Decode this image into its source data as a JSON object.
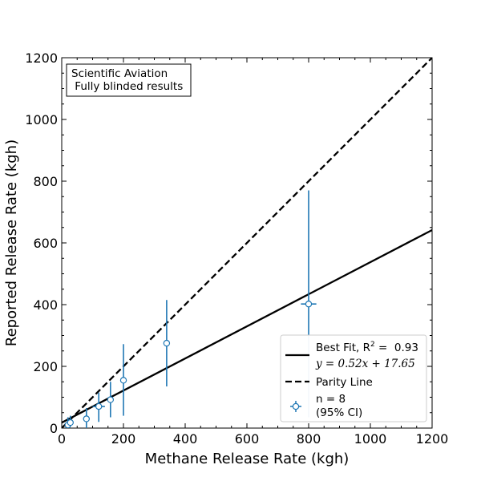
{
  "chart_data": {
    "type": "scatter",
    "xlabel": "Methane Release Rate (kgh)",
    "ylabel": "Reported Release Rate (kgh)",
    "xlim": [
      0,
      1200
    ],
    "ylim": [
      0,
      1200
    ],
    "x_ticks": [
      0,
      200,
      400,
      600,
      800,
      1000,
      1200
    ],
    "y_ticks": [
      0,
      200,
      400,
      600,
      800,
      1000,
      1200
    ],
    "x_tick_labels": [
      "0",
      "200",
      "400",
      "600",
      "800",
      "1000",
      "1200"
    ],
    "y_tick_labels": [
      "0",
      "200",
      "400",
      "600",
      "800",
      "1000",
      "1200"
    ],
    "annotation_box": {
      "line1": "Scientific Aviation",
      "line2": " Fully blinded results",
      "placement": "top-left"
    },
    "points": [
      {
        "x": 20,
        "y": 10,
        "x_err": 5,
        "y_lo": 0,
        "y_hi": 35
      },
      {
        "x": 28,
        "y": 18,
        "x_err": 8,
        "y_lo": 5,
        "y_hi": 40
      },
      {
        "x": 80,
        "y": 30,
        "x_err": 10,
        "y_lo": 0,
        "y_hi": 65
      },
      {
        "x": 120,
        "y": 70,
        "x_err": 20,
        "y_lo": 20,
        "y_hi": 115
      },
      {
        "x": 158,
        "y": 92,
        "x_err": 8,
        "y_lo": 35,
        "y_hi": 150
      },
      {
        "x": 200,
        "y": 155,
        "x_err": 5,
        "y_lo": 40,
        "y_hi": 272
      },
      {
        "x": 340,
        "y": 275,
        "x_err": 5,
        "y_lo": 135,
        "y_hi": 415
      },
      {
        "x": 800,
        "y": 402,
        "x_err": 25,
        "y_lo": 35,
        "y_hi": 770
      }
    ],
    "best_fit": {
      "slope": 0.52,
      "intercept": 17.65,
      "r2": "0.93"
    },
    "parity": {
      "slope": 1,
      "intercept": 0
    },
    "legend": {
      "placement": "lower-right",
      "best_fit_label_prefix": "Best Fit, R",
      "best_fit_label_sup": "2",
      "best_fit_label_suffix": " =  0.93",
      "best_fit_equation": "y = 0.52x + 17.65",
      "parity_label": "Parity Line",
      "points_label_line1": "n = 8",
      "points_label_line2": "(95% CI)"
    },
    "colors": {
      "points": "#1f77b4",
      "fit_line": "#000000",
      "parity_line": "#000000"
    }
  }
}
